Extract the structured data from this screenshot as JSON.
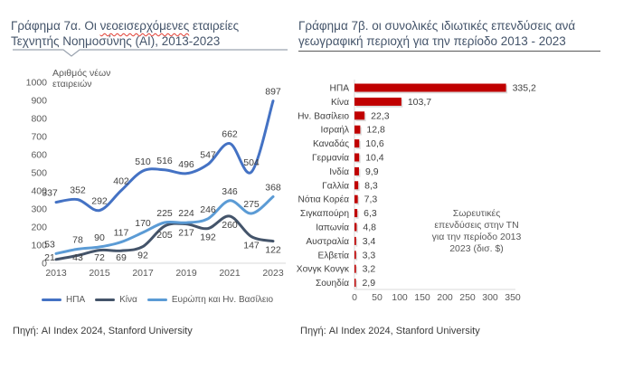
{
  "left_panel": {
    "title_pre": "Γράφημα 7α. Οι ",
    "title_word_spellchecked": "νεοεισερχόμενες",
    "title_post": " εταιρείες Τεχνητής Νοημοσύνης (AI), 2013-2023",
    "source": "Πηγή: AI Index 2024, Stanford University"
  },
  "right_panel": {
    "title": "Γράφημα 7β. οι συνολικές ιδιωτικές επενδύσεις ανά γεωγραφική περιοχή για την περίοδο 2013 - 2023",
    "source": "Πηγή: AI Index 2024, Stanford University"
  },
  "chart_data": [
    {
      "type": "line",
      "ylabel": "Αριθμός νέων εταιρειών",
      "x": [
        2013,
        2014,
        2015,
        2016,
        2017,
        2018,
        2019,
        2020,
        2021,
        2022,
        2023
      ],
      "x_tick_labels": [
        "2013",
        "2015",
        "2017",
        "2019",
        "2021",
        "2023"
      ],
      "ylim": [
        0,
        1000
      ],
      "y_ticks": [
        0,
        100,
        200,
        300,
        400,
        500,
        600,
        700,
        800,
        900,
        1000
      ],
      "grid": false,
      "legend_position": "bottom",
      "series": [
        {
          "key": "usa",
          "name": "ΗΠΑ",
          "color": "#4472C4",
          "label_position": "above",
          "values": [
            337,
            352,
            292,
            402,
            510,
            516,
            496,
            547,
            662,
            504,
            897
          ]
        },
        {
          "key": "china",
          "name": "Κίνα",
          "color": "#44546A",
          "label_position": "below",
          "values": [
            21,
            43,
            72,
            69,
            92,
            205,
            217,
            192,
            260,
            147,
            122
          ]
        },
        {
          "key": "europe-uk",
          "name": "Ευρώπη και Ην. Βασίλειο",
          "color": "#5B9BD5",
          "label_position": "above",
          "values": [
            53,
            78,
            90,
            117,
            170,
            225,
            224,
            246,
            346,
            275,
            368
          ]
        }
      ]
    },
    {
      "type": "bar",
      "orientation": "horizontal",
      "bar_color": "#C00000",
      "xlim": [
        0,
        350
      ],
      "x_ticks": [
        0,
        50,
        100,
        150,
        200,
        250,
        300,
        350
      ],
      "grid": false,
      "categories": [
        "ΗΠΑ",
        "Κίνα",
        "Ην. Βασίλειο",
        "Ισραήλ",
        "Καναδάς",
        "Γερμανία",
        "Ινδία",
        "Γαλλία",
        "Νότια Κορέα",
        "Σιγκαπούρη",
        "Ιαπωνία",
        "Αυστραλία",
        "Ελβετία",
        "Χονγκ Κονγκ",
        "Σουηδία"
      ],
      "values": [
        335.2,
        103.7,
        22.3,
        12.8,
        10.6,
        10.4,
        9.9,
        8.3,
        7.3,
        6.3,
        4.8,
        3.4,
        3.3,
        3.2,
        2.9
      ],
      "value_labels": [
        "335,2",
        "103,7",
        "22,3",
        "12,8",
        "10,6",
        "10,4",
        "9,9",
        "8,3",
        "7,3",
        "6,3",
        "4,8",
        "3,4",
        "3,3",
        "3,2",
        "2,9"
      ],
      "annotation": "Σωρευτικές\nεπενδύσεις στην ΤΝ\nγια την περίοδο 2013\n2023 (δισ. $)"
    }
  ]
}
